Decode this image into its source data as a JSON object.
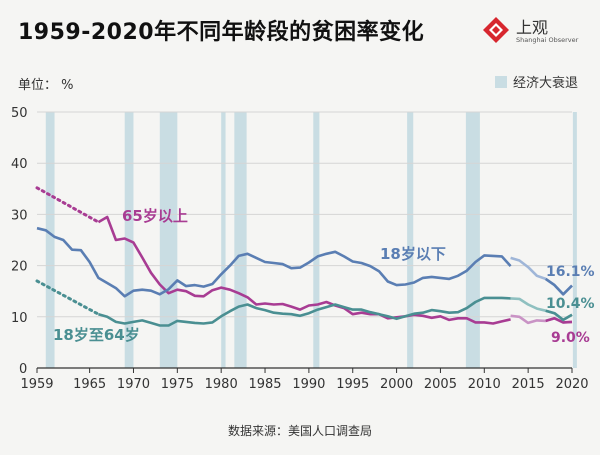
{
  "title": "1959-2020年不同年龄段的贫困率变化",
  "logo": {
    "name": "上观",
    "subtitle": "Shanghai Observer",
    "icon": "logo-icon"
  },
  "unit_label": "单位： %",
  "legend": {
    "recession_label": "经济大衰退"
  },
  "source": "数据来源：美国人口调查局",
  "colors": {
    "age65": "#a83c93",
    "age65_light": "#c993c5",
    "under18": "#5a7eb3",
    "under18_light": "#9fb6d8",
    "age18_64": "#4a8f92",
    "age18_64_light": "#8fc0c0",
    "recession": "#c9dde3",
    "grid": "#d5d5d5"
  },
  "chart_data": {
    "type": "line",
    "title": "1959-2020年不同年龄段的贫困率变化",
    "ylabel": "单位： %",
    "xlim": [
      1959,
      2020
    ],
    "ylim": [
      0,
      50
    ],
    "x_ticks": [
      1959,
      1965,
      1970,
      1975,
      1980,
      1985,
      1990,
      1995,
      2000,
      2005,
      2010,
      2015,
      2020
    ],
    "y_ticks": [
      10,
      20,
      30,
      40,
      50
    ],
    "grid": true,
    "legend_position": "top-right",
    "recessions": [
      [
        1960,
        1961
      ],
      [
        1969,
        1970
      ],
      [
        1973,
        1975
      ],
      [
        1980,
        1980.5
      ],
      [
        1981.5,
        1982.9
      ],
      [
        1990.5,
        1991.2
      ],
      [
        2001.2,
        2001.9
      ],
      [
        2007.9,
        2009.5
      ],
      [
        2020.1,
        2020.5
      ]
    ],
    "series": [
      {
        "name": "65岁以上",
        "label_text": "65岁以上",
        "dotted": {
          "x": [
            1959,
            1966
          ],
          "y": [
            35.2,
            28.5
          ]
        },
        "x": [
          1966,
          1967,
          1968,
          1969,
          1970,
          1971,
          1972,
          1973,
          1974,
          1975,
          1976,
          1977,
          1978,
          1979,
          1980,
          1981,
          1982,
          1983,
          1984,
          1985,
          1986,
          1987,
          1988,
          1989,
          1990,
          1991,
          1992,
          1993,
          1994,
          1995,
          1996,
          1997,
          1998,
          1999,
          2000,
          2001,
          2002,
          2003,
          2004,
          2005,
          2006,
          2007,
          2008,
          2009,
          2010,
          2011,
          2012,
          2013
        ],
        "y": [
          28.5,
          29.5,
          25.0,
          25.3,
          24.5,
          21.6,
          18.6,
          16.3,
          14.6,
          15.3,
          15.0,
          14.1,
          14.0,
          15.2,
          15.7,
          15.3,
          14.6,
          13.8,
          12.4,
          12.6,
          12.4,
          12.5,
          12.0,
          11.4,
          12.2,
          12.4,
          12.9,
          12.2,
          11.7,
          10.5,
          10.8,
          10.5,
          10.5,
          9.7,
          9.9,
          10.1,
          10.4,
          10.2,
          9.8,
          10.1,
          9.4,
          9.7,
          9.7,
          8.9,
          8.9,
          8.7,
          9.1,
          9.5
        ],
        "later": {
          "x": [
            2013,
            2014,
            2015,
            2016,
            2017,
            2018,
            2019,
            2020
          ],
          "y": [
            10.2,
            10.0,
            8.8,
            9.3,
            9.2,
            9.7,
            8.9,
            9.0
          ]
        }
      },
      {
        "name": "18岁以下",
        "label_text": "18岁以下",
        "x": [
          1959,
          1960,
          1961,
          1962,
          1963,
          1964,
          1965,
          1966,
          1967,
          1968,
          1969,
          1970,
          1971,
          1972,
          1973,
          1974,
          1975,
          1976,
          1977,
          1978,
          1979,
          1980,
          1981,
          1982,
          1983,
          1984,
          1985,
          1986,
          1987,
          1988,
          1989,
          1990,
          1991,
          1992,
          1993,
          1994,
          1995,
          1996,
          1997,
          1998,
          1999,
          2000,
          2001,
          2002,
          2003,
          2004,
          2005,
          2006,
          2007,
          2008,
          2009,
          2010,
          2011,
          2012,
          2013
        ],
        "y": [
          27.3,
          26.9,
          25.6,
          25.0,
          23.1,
          23.0,
          20.7,
          17.6,
          16.6,
          15.6,
          14.0,
          15.1,
          15.3,
          15.1,
          14.4,
          15.4,
          17.1,
          16.0,
          16.2,
          15.9,
          16.4,
          18.3,
          20.0,
          21.9,
          22.3,
          21.5,
          20.7,
          20.5,
          20.3,
          19.5,
          19.6,
          20.6,
          21.8,
          22.3,
          22.7,
          21.8,
          20.8,
          20.5,
          19.9,
          18.9,
          16.9,
          16.2,
          16.3,
          16.7,
          17.6,
          17.8,
          17.6,
          17.4,
          18.0,
          19.0,
          20.7,
          22.0,
          21.9,
          21.8,
          19.9
        ],
        "later": {
          "x": [
            2013,
            2014,
            2015,
            2016,
            2017,
            2018,
            2019,
            2020
          ],
          "y": [
            21.5,
            21.0,
            19.7,
            18.0,
            17.4,
            16.2,
            14.4,
            16.1
          ]
        },
        "end_label": "16.1%"
      },
      {
        "name": "18岁至64岁",
        "label_text": "18岁至64岁",
        "dotted": {
          "x": [
            1959,
            1966
          ],
          "y": [
            17.0,
            10.5
          ]
        },
        "x": [
          1966,
          1967,
          1968,
          1969,
          1970,
          1971,
          1972,
          1973,
          1974,
          1975,
          1976,
          1977,
          1978,
          1979,
          1980,
          1981,
          1982,
          1983,
          1984,
          1985,
          1986,
          1987,
          1988,
          1989,
          1990,
          1991,
          1992,
          1993,
          1994,
          1995,
          1996,
          1997,
          1998,
          1999,
          2000,
          2001,
          2002,
          2003,
          2004,
          2005,
          2006,
          2007,
          2008,
          2009,
          2010,
          2011,
          2012,
          2013
        ],
        "y": [
          10.5,
          10.0,
          9.0,
          8.7,
          9.0,
          9.3,
          8.8,
          8.3,
          8.3,
          9.2,
          9.0,
          8.8,
          8.7,
          8.9,
          10.1,
          11.1,
          12.0,
          12.4,
          11.7,
          11.3,
          10.8,
          10.6,
          10.5,
          10.2,
          10.7,
          11.4,
          11.9,
          12.4,
          11.9,
          11.4,
          11.4,
          10.9,
          10.5,
          10.1,
          9.6,
          10.1,
          10.6,
          10.8,
          11.3,
          11.1,
          10.8,
          10.9,
          11.7,
          12.9,
          13.7,
          13.7,
          13.7,
          13.6
        ],
        "later": {
          "x": [
            2013,
            2014,
            2015,
            2016,
            2017,
            2018,
            2019,
            2020
          ],
          "y": [
            13.6,
            13.5,
            12.4,
            11.6,
            11.2,
            10.7,
            9.4,
            10.4
          ]
        },
        "end_label": "10.4%"
      }
    ],
    "end_label_65": "9.0%"
  }
}
